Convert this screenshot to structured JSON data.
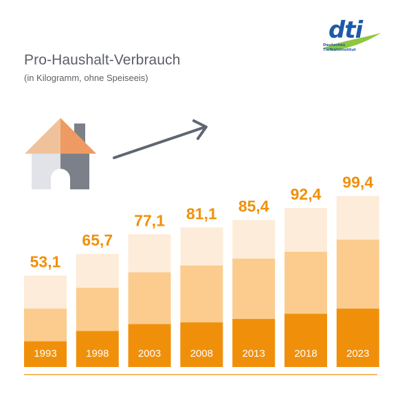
{
  "header": {
    "title": "Pro-Haushalt-Verbrauch",
    "subtitle": "(in Kilogramm, ohne Speiseeis)"
  },
  "logo": {
    "name": "dti",
    "line1": "Deutsches",
    "line2": "Tiefkühlinstitut",
    "colors": {
      "text": "#1e5aa8",
      "swoosh": "#8dc63f"
    }
  },
  "icons": [
    "house-icon",
    "arrow-up-right-icon"
  ],
  "colors": {
    "orange": "#f0900a",
    "mid": "#fbcc8e",
    "light": "#fdecd9",
    "value_label": "#f0900a",
    "axis_line": "#f0900a",
    "year_label": "#ffffff"
  },
  "chart_data": {
    "type": "bar",
    "stacked": true,
    "categories": [
      "1993",
      "1998",
      "2003",
      "2008",
      "2013",
      "2018",
      "2023"
    ],
    "totals_labels": [
      "53,1",
      "65,7",
      "77,1",
      "81,1",
      "85,4",
      "92,4",
      "99,4"
    ],
    "values": [
      53.1,
      65.7,
      77.1,
      81.1,
      85.4,
      92.4,
      99.4
    ],
    "segments": [
      {
        "values": [
          15,
          21,
          25,
          26,
          28,
          31,
          34
        ]
      },
      {
        "values": [
          19,
          25,
          30,
          33,
          35,
          36,
          40
        ]
      },
      {
        "values": [
          19.1,
          19.7,
          22.1,
          22.1,
          22.4,
          25.4,
          25.4
        ]
      }
    ],
    "ylim": [
      0,
      100
    ],
    "grid": false,
    "legend": "none"
  }
}
